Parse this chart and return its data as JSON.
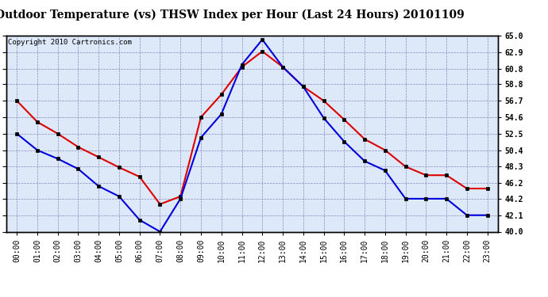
{
  "title": "Outdoor Temperature (vs) THSW Index per Hour (Last 24 Hours) 20101109",
  "copyright": "Copyright 2010 Cartronics.com",
  "x_labels": [
    "00:00",
    "01:00",
    "02:00",
    "03:00",
    "04:00",
    "05:00",
    "06:00",
    "07:00",
    "08:00",
    "09:00",
    "10:00",
    "11:00",
    "12:00",
    "13:00",
    "14:00",
    "15:00",
    "16:00",
    "17:00",
    "18:00",
    "19:00",
    "20:00",
    "21:00",
    "22:00",
    "23:00"
  ],
  "blue_data": [
    52.5,
    50.4,
    49.3,
    48.0,
    45.8,
    44.5,
    41.5,
    40.0,
    44.2,
    52.0,
    55.0,
    61.3,
    64.5,
    61.0,
    58.5,
    54.5,
    51.5,
    49.0,
    47.8,
    44.2,
    44.2,
    44.2,
    42.1,
    42.1
  ],
  "red_data": [
    56.7,
    54.0,
    52.5,
    50.8,
    49.5,
    48.2,
    47.0,
    43.5,
    44.5,
    54.6,
    57.5,
    61.0,
    63.0,
    61.0,
    58.5,
    56.7,
    54.3,
    51.8,
    50.4,
    48.3,
    47.2,
    47.2,
    45.5,
    45.5
  ],
  "y_ticks": [
    40.0,
    42.1,
    44.2,
    46.2,
    48.3,
    50.4,
    52.5,
    54.6,
    56.7,
    58.8,
    60.8,
    62.9,
    65.0
  ],
  "ylim": [
    40.0,
    65.0
  ],
  "blue_color": "#0000dd",
  "red_color": "#dd0000",
  "bg_color": "#ffffff",
  "plot_bg_color": "#dde8f8",
  "grid_color": "#8888bb",
  "title_fontsize": 10,
  "copyright_fontsize": 6.5,
  "tick_fontsize": 7
}
